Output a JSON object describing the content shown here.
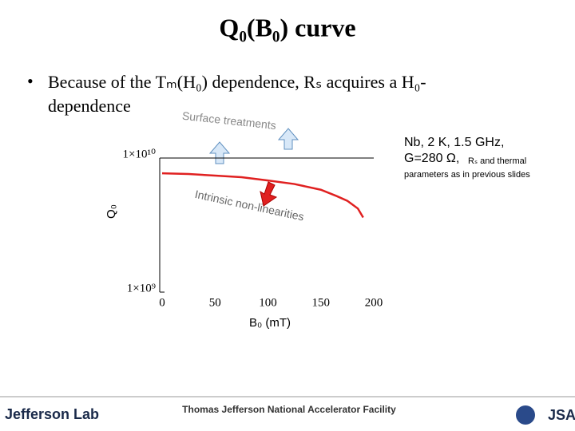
{
  "title": "Q₀(B₀) curve",
  "bullet": "Because of the Tₘ(H₀) dependence, Rₛ acquires a H₀-dependence",
  "annotations": {
    "surface": "Surface treatments",
    "intrinsic": "Intrinsic non-linearities"
  },
  "note": [
    "Nb, 2 K, 1.5 GHz,",
    "G=280 Ω,",
    "Rₛ and thermal",
    "parameters as in previous slides"
  ],
  "footer": {
    "lab": "Jefferson Lab",
    "facility": "Thomas Jefferson National Accelerator Facility",
    "jsa": "JSA"
  },
  "chart_data": {
    "type": "line",
    "xlabel": "B₀ (mT)",
    "ylabel": "Q₀",
    "x": [
      0,
      25,
      50,
      75,
      100,
      125,
      150,
      165,
      175,
      185,
      190
    ],
    "series": [
      {
        "name": "Q0",
        "color": "#e02020",
        "values": [
          7700000000,
          7600000000,
          7400000000,
          7200000000,
          6800000000,
          6400000000,
          5800000000,
          5200000000,
          4800000000,
          4200000000,
          3600000000
        ]
      }
    ],
    "xlim": [
      0,
      200
    ],
    "xticks": [
      0,
      50,
      100,
      150,
      200
    ],
    "ylim": [
      1000000000,
      10000000000
    ],
    "log_y": true,
    "yticks": [
      {
        "value": 10000000000,
        "label": "1×10¹⁰"
      },
      {
        "value": 1000000000,
        "label": "1×10⁹"
      }
    ]
  }
}
